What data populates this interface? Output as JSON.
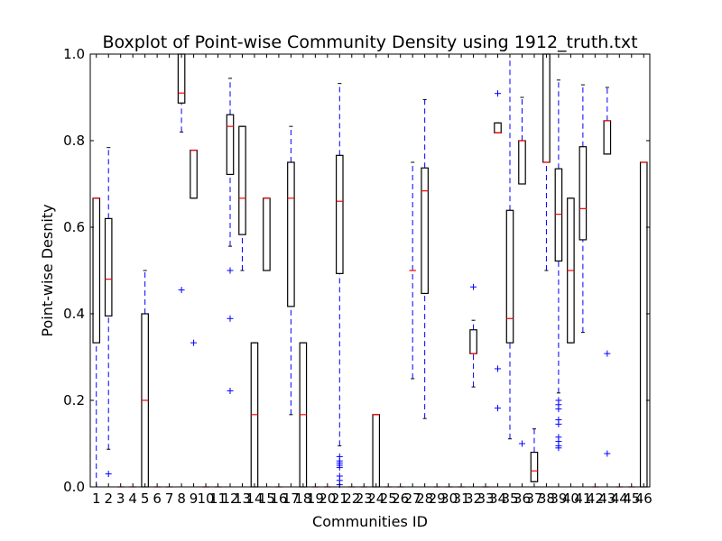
{
  "chart_data": {
    "type": "boxplot",
    "title": "Boxplot of Point-wise Community Density using 1912_truth.txt",
    "xlabel": "Communities ID",
    "ylabel": "Point-wise Desnity",
    "ylim": [
      0,
      1.0
    ],
    "y_ticks": [
      "0.0",
      "0.2",
      "0.4",
      "0.6",
      "0.8",
      "1.0"
    ],
    "categories": [
      "1",
      "2",
      "3",
      "4",
      "5",
      "6",
      "7",
      "8",
      "9",
      "10",
      "11",
      "12",
      "13",
      "14",
      "15",
      "16",
      "17",
      "18",
      "19",
      "20",
      "21",
      "22",
      "23",
      "24",
      "25",
      "26",
      "27",
      "28",
      "29",
      "30",
      "31",
      "32",
      "33",
      "34",
      "35",
      "36",
      "37",
      "38",
      "39",
      "40",
      "41",
      "42",
      "43",
      "44",
      "45",
      "46"
    ],
    "grid": false,
    "legend": "none",
    "colors": {
      "box": "#000000",
      "median": "#ff0000",
      "whisker": "#0000ff",
      "flier": "#0000ff",
      "cap": "#000000"
    },
    "boxes": [
      {
        "q1": 0.333,
        "median": 0.667,
        "q3": 0.667,
        "wlo": 0.0,
        "whi": 0.667,
        "fliers": []
      },
      {
        "q1": 0.395,
        "median": 0.48,
        "q3": 0.62,
        "wlo": 0.087,
        "whi": 0.784,
        "fliers": [
          0.03
        ]
      },
      {
        "q1": 0,
        "median": 0,
        "q3": 0,
        "wlo": 0,
        "whi": 0,
        "fliers": []
      },
      {
        "q1": 0,
        "median": 0,
        "q3": 0,
        "wlo": 0,
        "whi": 0,
        "fliers": []
      },
      {
        "q1": 0.0,
        "median": 0.2,
        "q3": 0.4,
        "wlo": 0.0,
        "whi": 0.5,
        "fliers": []
      },
      {
        "q1": 0,
        "median": 0,
        "q3": 0,
        "wlo": 0,
        "whi": 0,
        "fliers": []
      },
      {
        "q1": 0,
        "median": 0,
        "q3": 0,
        "wlo": 0,
        "whi": 0,
        "fliers": []
      },
      {
        "q1": 0.887,
        "median": 0.91,
        "q3": 1.0,
        "wlo": 0.82,
        "whi": 1.0,
        "fliers": [
          0.455
        ]
      },
      {
        "q1": 0.667,
        "median": 0.778,
        "q3": 0.778,
        "wlo": 0.667,
        "whi": 0.778,
        "fliers": [
          0.333
        ]
      },
      {
        "q1": 0,
        "median": 0,
        "q3": 0,
        "wlo": 0,
        "whi": 0,
        "fliers": []
      },
      {
        "q1": 0,
        "median": 0,
        "q3": 0,
        "wlo": 0,
        "whi": 0,
        "fliers": []
      },
      {
        "q1": 0.722,
        "median": 0.833,
        "q3": 0.86,
        "wlo": 0.556,
        "whi": 0.944,
        "fliers": [
          0.5,
          0.389,
          0.222
        ]
      },
      {
        "q1": 0.583,
        "median": 0.667,
        "q3": 0.833,
        "wlo": 0.5,
        "whi": 0.833,
        "fliers": []
      },
      {
        "q1": 0.0,
        "median": 0.167,
        "q3": 0.333,
        "wlo": 0.0,
        "whi": 0.333,
        "fliers": []
      },
      {
        "q1": 0.5,
        "median": 0.667,
        "q3": 0.667,
        "wlo": 0.5,
        "whi": 0.667,
        "fliers": []
      },
      {
        "q1": 0,
        "median": 0,
        "q3": 0,
        "wlo": 0,
        "whi": 0,
        "fliers": []
      },
      {
        "q1": 0.417,
        "median": 0.667,
        "q3": 0.75,
        "wlo": 0.167,
        "whi": 0.833,
        "fliers": []
      },
      {
        "q1": 0.0,
        "median": 0.167,
        "q3": 0.333,
        "wlo": 0.0,
        "whi": 0.333,
        "fliers": []
      },
      {
        "q1": 0,
        "median": 0,
        "q3": 0,
        "wlo": 0,
        "whi": 0,
        "fliers": []
      },
      {
        "q1": 0,
        "median": 0,
        "q3": 0,
        "wlo": 0,
        "whi": 0,
        "fliers": []
      },
      {
        "q1": 0.493,
        "median": 0.66,
        "q3": 0.766,
        "wlo": 0.095,
        "whi": 0.932,
        "fliers": [
          0.07,
          0.06,
          0.055,
          0.05,
          0.045,
          0.025,
          0.015,
          0.005
        ]
      },
      {
        "q1": 0,
        "median": 0,
        "q3": 0,
        "wlo": 0,
        "whi": 0,
        "fliers": []
      },
      {
        "q1": 0,
        "median": 0,
        "q3": 0,
        "wlo": 0,
        "whi": 0,
        "fliers": []
      },
      {
        "q1": 0.0,
        "median": 0.167,
        "q3": 0.167,
        "wlo": 0.0,
        "whi": 0.167,
        "fliers": []
      },
      {
        "q1": 0,
        "median": 0,
        "q3": 0,
        "wlo": 0,
        "whi": 0,
        "fliers": []
      },
      {
        "q1": 0,
        "median": 0,
        "q3": 0,
        "wlo": 0,
        "whi": 0,
        "fliers": []
      },
      {
        "q1": 0.5,
        "median": 0.5,
        "q3": 0.5,
        "wlo": 0.25,
        "whi": 0.75,
        "fliers": []
      },
      {
        "q1": 0.447,
        "median": 0.684,
        "q3": 0.737,
        "wlo": 0.158,
        "whi": 0.895,
        "fliers": []
      },
      {
        "q1": 0,
        "median": 0,
        "q3": 0,
        "wlo": 0,
        "whi": 0,
        "fliers": []
      },
      {
        "q1": 0,
        "median": 0,
        "q3": 0,
        "wlo": 0,
        "whi": 0,
        "fliers": []
      },
      {
        "q1": 0,
        "median": 0,
        "q3": 0,
        "wlo": 0,
        "whi": 0,
        "fliers": []
      },
      {
        "q1": 0.308,
        "median": 0.308,
        "q3": 0.363,
        "wlo": 0.231,
        "whi": 0.385,
        "fliers": [
          0.462
        ]
      },
      {
        "q1": 0,
        "median": 0,
        "q3": 0,
        "wlo": 0,
        "whi": 0,
        "fliers": []
      },
      {
        "q1": 0.818,
        "median": 0.818,
        "q3": 0.841,
        "wlo": 0.818,
        "whi": 0.841,
        "fliers": [
          0.909,
          0.273,
          0.182
        ]
      },
      {
        "q1": 0.333,
        "median": 0.389,
        "q3": 0.639,
        "wlo": 0.111,
        "whi": 1.0,
        "fliers": []
      },
      {
        "q1": 0.7,
        "median": 0.8,
        "q3": 0.8,
        "wlo": 0.7,
        "whi": 0.9,
        "fliers": [
          0.1
        ]
      },
      {
        "q1": 0.012,
        "median": 0.037,
        "q3": 0.08,
        "wlo": 0.012,
        "whi": 0.134,
        "fliers": []
      },
      {
        "q1": 0.75,
        "median": 0.75,
        "q3": 1.0,
        "wlo": 0.5,
        "whi": 1.0,
        "fliers": []
      },
      {
        "q1": 0.522,
        "median": 0.63,
        "q3": 0.735,
        "wlo": 0.217,
        "whi": 0.94,
        "fliers": [
          0.2,
          0.19,
          0.18,
          0.155,
          0.145,
          0.115,
          0.105,
          0.095,
          0.09
        ]
      },
      {
        "q1": 0.333,
        "median": 0.5,
        "q3": 0.667,
        "wlo": 0.333,
        "whi": 0.667,
        "fliers": []
      },
      {
        "q1": 0.571,
        "median": 0.643,
        "q3": 0.786,
        "wlo": 0.357,
        "whi": 0.929,
        "fliers": []
      },
      {
        "q1": 0,
        "median": 0,
        "q3": 0,
        "wlo": 0,
        "whi": 0,
        "fliers": []
      },
      {
        "q1": 0.769,
        "median": 0.846,
        "q3": 0.846,
        "wlo": 0.769,
        "whi": 0.923,
        "fliers": [
          0.308,
          0.077
        ]
      },
      {
        "q1": 0,
        "median": 0,
        "q3": 0,
        "wlo": 0,
        "whi": 0,
        "fliers": []
      },
      {
        "q1": 0,
        "median": 0,
        "q3": 0,
        "wlo": 0,
        "whi": 0,
        "fliers": []
      },
      {
        "q1": 0.0,
        "median": 0.75,
        "q3": 0.75,
        "wlo": 0.0,
        "whi": 0.75,
        "fliers": []
      }
    ]
  }
}
